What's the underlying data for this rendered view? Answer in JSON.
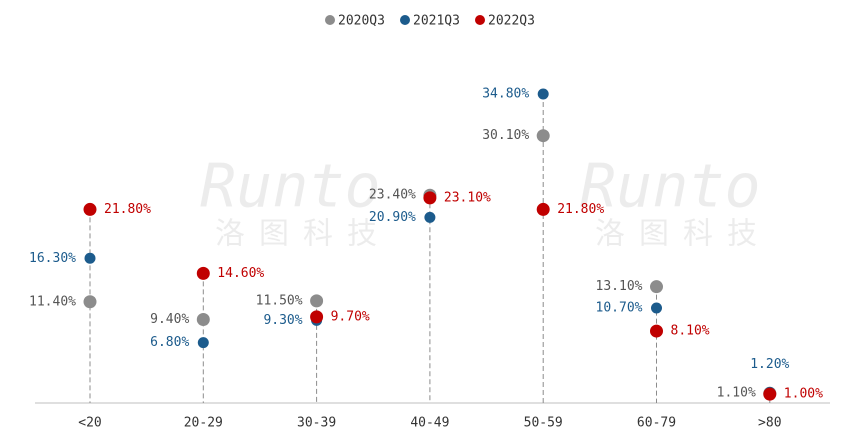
{
  "chart_data": {
    "type": "dot",
    "watermark": "Runto",
    "watermark_sub": "洛图科技",
    "categories": [
      "<20",
      "20-29",
      "30-39",
      "40-49",
      "50-59",
      "60-79",
      ">80"
    ],
    "series": [
      {
        "name": "2020Q3",
        "color": "#8c8c8c",
        "values": [
          11.4,
          9.4,
          11.5,
          23.4,
          30.1,
          13.1,
          1.1
        ],
        "value_labels": [
          "11.40%",
          "9.40%",
          "11.50%",
          "23.40%",
          "30.10%",
          "13.10%",
          "1.10%"
        ]
      },
      {
        "name": "2021Q3",
        "color": "#1c5b8c",
        "values": [
          16.3,
          6.8,
          9.3,
          20.9,
          34.8,
          10.7,
          1.2
        ],
        "value_labels": [
          "16.30%",
          "6.80%",
          "9.30%",
          "20.90%",
          "34.80%",
          "10.70%",
          "1.20%"
        ]
      },
      {
        "name": "2022Q3",
        "color": "#c00000",
        "values": [
          21.8,
          14.6,
          9.7,
          23.1,
          21.8,
          8.1,
          1.0
        ],
        "value_labels": [
          "21.80%",
          "14.60%",
          "9.70%",
          "23.10%",
          "21.80%",
          "8.10%",
          "1.00%"
        ]
      }
    ]
  }
}
